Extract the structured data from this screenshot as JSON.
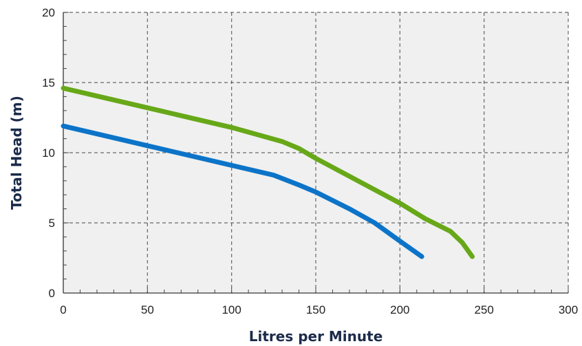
{
  "chart_data": {
    "type": "line",
    "title": "",
    "xlabel": "Litres per Minute",
    "ylabel": "Total Head (m)",
    "xlim": [
      0,
      300
    ],
    "ylim": [
      0,
      20
    ],
    "xticks": [
      0,
      50,
      100,
      150,
      200,
      250,
      300
    ],
    "yticks": [
      0,
      5,
      10,
      15,
      20
    ],
    "grid": true,
    "series": [
      {
        "color": "#67a818",
        "x": [
          0,
          50,
          100,
          130,
          140,
          150,
          175,
          200,
          215,
          230,
          237,
          243
        ],
        "y": [
          14.6,
          13.2,
          11.8,
          10.8,
          10.3,
          9.6,
          8.0,
          6.4,
          5.3,
          4.4,
          3.6,
          2.6
        ]
      },
      {
        "color": "#0c74c8",
        "x": [
          0,
          50,
          100,
          125,
          140,
          150,
          170,
          185,
          200,
          213
        ],
        "y": [
          11.9,
          10.5,
          9.1,
          8.4,
          7.7,
          7.2,
          6.0,
          5.0,
          3.7,
          2.6
        ]
      }
    ],
    "colors": {
      "plot_background": "#f0f0f0",
      "grid": "#666666",
      "axis_title": "#1c2b4a"
    }
  }
}
